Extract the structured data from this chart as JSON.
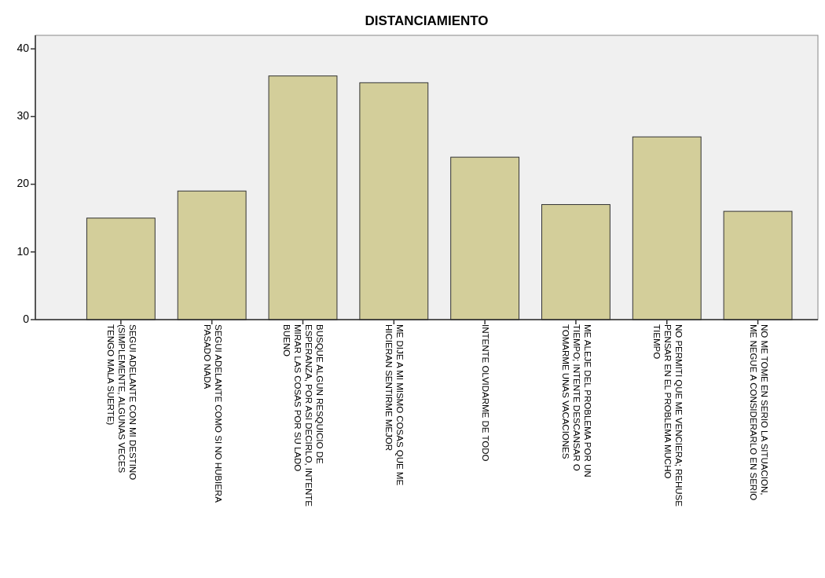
{
  "chart_data": {
    "type": "bar",
    "title": "DISTANCIAMIENTO",
    "categories": [
      "SEGUI ADELANTE CON MI DESTINO\n(SIMPLEMENTE, ALGUNAS VECES\nTENGO MALA SUERTE)",
      "SEGUI ADELANTE COMO SI NO HUBIERA\nPASADO NADA",
      "BUSQUE ALGUN RESQUICIO DE\nESPERANZA, POR ASI DECIRLO, INTENTE\nMIRAR LAS COSAS POR SU LADO\nBUENO",
      "ME DIJE A MI MISMO COSAS QUE ME\nHICIERAN SENTIRME MEJOR",
      "INTENTE OLVIDARME DE TODO",
      "ME ALEJE DEL PROBLEMA POR UN\nTIEMPO; INTENTE DESCANSAR O\nTOMARME UNAS VACACIONES",
      "NO PERMITI QUE ME VENCIERA; REHUSE\nPENSAR EN EL PROBLEMA MUCHO\nTIEMPO",
      "NO ME TOME EN SERIO LA SITUACION,\nME NEGUE A CONSIDERARLO EN SERIO"
    ],
    "values": [
      15,
      19,
      36,
      35,
      24,
      17,
      27,
      16
    ],
    "color": "#d3ce9a",
    "ylim": [
      0,
      42
    ],
    "yticks": [
      0,
      10,
      20,
      30,
      40
    ],
    "grid": false
  }
}
